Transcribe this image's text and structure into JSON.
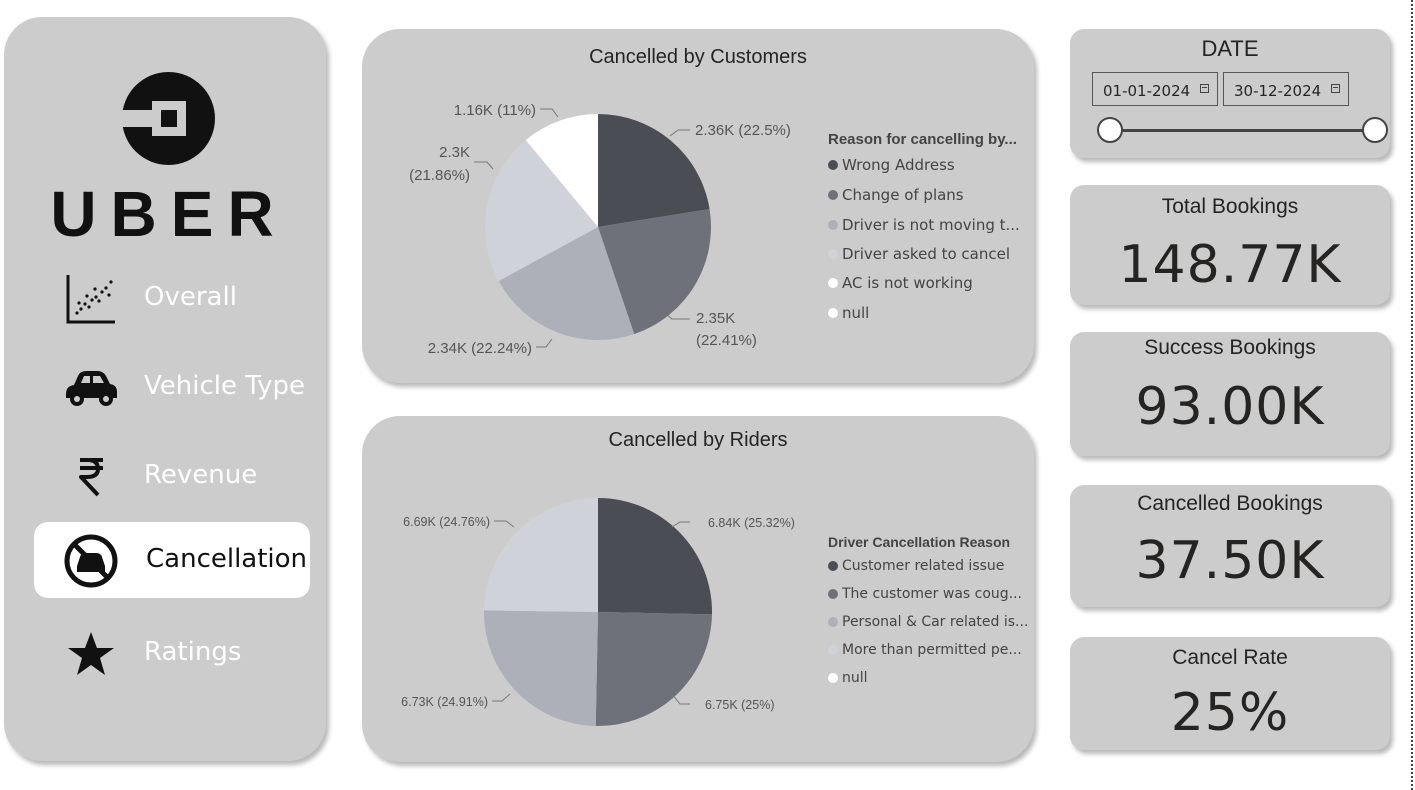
{
  "sidebar": {
    "brand": "UBER",
    "nav": [
      {
        "label": "Overall",
        "icon": "scatter-chart-icon",
        "active": false
      },
      {
        "label": "Vehicle Type",
        "icon": "car-icon",
        "active": false
      },
      {
        "label": "Revenue",
        "icon": "rupee-icon",
        "active": false
      },
      {
        "label": "Cancellation",
        "icon": "no-car-icon",
        "active": true
      },
      {
        "label": "Ratings",
        "icon": "star-icon",
        "active": false
      }
    ]
  },
  "customers_panel": {
    "title": "Cancelled by Customers",
    "legend_title": "Reason for cancelling by...",
    "legend": [
      "Wrong Address",
      "Change of plans",
      "Driver is not moving t...",
      "Driver asked to cancel",
      "AC is not working",
      "null"
    ],
    "slice_labels": [
      "2.36K (22.5%)",
      "2.35K (22.41%)",
      "2.34K (22.24%)",
      "2.3K (21.86%)",
      "1.16K (11%)"
    ]
  },
  "riders_panel": {
    "title": "Cancelled by Riders",
    "legend_title": "Driver Cancellation Reason",
    "legend": [
      "Customer related issue",
      "The customer was coug...",
      "Personal & Car related is...",
      "More than permitted pe...",
      "null"
    ],
    "slice_labels": [
      "6.84K (25.32%)",
      "6.75K (25%)",
      "6.73K (24.91%)",
      "6.69K (24.76%)"
    ]
  },
  "date_filter": {
    "title": "DATE",
    "start": "01-01-2024",
    "end": "30-12-2024"
  },
  "kpis": {
    "total_label": "Total Bookings",
    "total_value": "148.77K",
    "success_label": "Success Bookings",
    "success_value": "93.00K",
    "cancelled_label": "Cancelled Bookings",
    "cancelled_value": "37.50K",
    "rate_label": "Cancel Rate",
    "rate_value": "25%"
  },
  "colors": {
    "panel": "#cccccc",
    "slice1": "#4a4d54",
    "slice2": "#6e717a",
    "slice3": "#adb0b8",
    "slice4": "#d0d2d9",
    "slice5": "#ffffff"
  },
  "chart_data": [
    {
      "type": "pie",
      "title": "Cancelled by Customers",
      "legend_title": "Reason for cancelling by...",
      "categories": [
        "Wrong Address",
        "Change of plans",
        "Driver is not moving t...",
        "Driver asked to cancel",
        "AC is not working",
        "null"
      ],
      "values": [
        2.36,
        2.35,
        2.34,
        2.3,
        1.16,
        0
      ],
      "percent": [
        22.5,
        22.41,
        22.24,
        21.86,
        11,
        0
      ],
      "legend_position": "right"
    },
    {
      "type": "pie",
      "title": "Cancelled by Riders",
      "legend_title": "Driver Cancellation Reason",
      "categories": [
        "Customer related issue",
        "The customer was coug...",
        "Personal & Car related is...",
        "More than permitted pe...",
        "null"
      ],
      "values": [
        6.84,
        6.75,
        6.73,
        6.69,
        0
      ],
      "percent": [
        25.32,
        25,
        24.91,
        24.76,
        0
      ],
      "legend_position": "right"
    }
  ]
}
